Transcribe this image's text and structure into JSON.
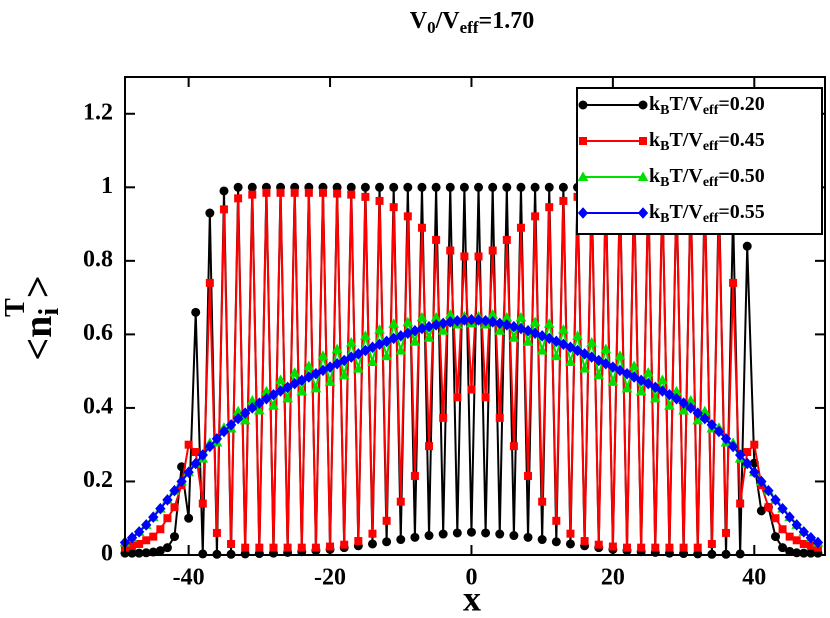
{
  "chart_data": {
    "type": "line",
    "title": [
      "V",
      "0",
      "/V",
      "eff",
      "=1.70"
    ],
    "x_label": "x",
    "y_label": [
      "<n",
      "i",
      "T",
      ">"
    ],
    "xlim": [
      -49,
      50
    ],
    "ylim": [
      0,
      1.3
    ],
    "xticks": [
      -40,
      -20,
      0,
      20,
      40
    ],
    "yticks": [
      0,
      0.2,
      0.4,
      0.6,
      0.8,
      1,
      1.2
    ],
    "legend": "upper right",
    "x": [
      -49,
      -48,
      -47,
      -46,
      -45,
      -44,
      -43,
      -42,
      -41,
      -40,
      -39,
      -38,
      -37,
      -36,
      -35,
      -34,
      -33,
      -32,
      -31,
      -30,
      -29,
      -28,
      -27,
      -26,
      -25,
      -24,
      -23,
      -22,
      -21,
      -20,
      -19,
      -18,
      -17,
      -16,
      -15,
      -14,
      -13,
      -12,
      -11,
      -10,
      -9,
      -8,
      -7,
      -6,
      -5,
      -4,
      -3,
      -2,
      -1,
      0,
      1,
      2,
      3,
      4,
      5,
      6,
      7,
      8,
      9,
      10,
      11,
      12,
      13,
      14,
      15,
      16,
      17,
      18,
      19,
      20,
      21,
      22,
      23,
      24,
      25,
      26,
      27,
      28,
      29,
      30,
      31,
      32,
      33,
      34,
      35,
      36,
      37,
      38,
      39,
      40,
      41,
      42,
      43,
      44,
      45,
      46,
      47,
      48,
      49
    ],
    "series": [
      {
        "name": [
          "k",
          "B",
          "T/V",
          "eff",
          "=0.20"
        ],
        "color": "#000000",
        "marker": "circle",
        "values": [
          0.005,
          0.005,
          0.005,
          0.006,
          0.008,
          0.012,
          0.02,
          0.05,
          0.24,
          0.1,
          0.66,
          0.003,
          0.93,
          0.002,
          0.99,
          0.002,
          1,
          0.003,
          1,
          0.004,
          1,
          0.005,
          1,
          0.007,
          1,
          0.009,
          1,
          0.012,
          1,
          0.015,
          1,
          0.02,
          1,
          0.025,
          1,
          0.03,
          1,
          0.036,
          1,
          0.042,
          1,
          0.048,
          1,
          0.053,
          1,
          0.057,
          1,
          0.06,
          1,
          0.062,
          1,
          0.06,
          1,
          0.057,
          1,
          0.053,
          1,
          0.048,
          1,
          0.042,
          1,
          0.036,
          1,
          0.03,
          1,
          0.025,
          1,
          0.02,
          1,
          0.015,
          1,
          0.012,
          1,
          0.009,
          1,
          0.007,
          1,
          0.005,
          1,
          0.004,
          1,
          0.003,
          1,
          0.002,
          0.99,
          0.002,
          0.93,
          0.003,
          0.84,
          0.25,
          0.12,
          0.13,
          0.05,
          0.02,
          0.01,
          0.006,
          0.005,
          0.005,
          0.005
        ]
      },
      {
        "name": [
          "k",
          "B",
          "T/V",
          "eff",
          "=0.45"
        ],
        "color": "#ff0000",
        "marker": "square",
        "values": [
          0.02,
          0.025,
          0.03,
          0.04,
          0.05,
          0.07,
          0.1,
          0.13,
          0.19,
          0.3,
          0.28,
          0.14,
          0.74,
          0.06,
          0.94,
          0.03,
          0.97,
          0.02,
          0.98,
          0.02,
          0.985,
          0.02,
          0.985,
          0.02,
          0.985,
          0.02,
          0.985,
          0.02,
          0.985,
          0.023,
          0.983,
          0.028,
          0.98,
          0.038,
          0.974,
          0.058,
          0.963,
          0.093,
          0.946,
          0.145,
          0.921,
          0.215,
          0.89,
          0.296,
          0.857,
          0.373,
          0.828,
          0.429,
          0.812,
          0.45,
          0.812,
          0.429,
          0.828,
          0.373,
          0.857,
          0.296,
          0.89,
          0.215,
          0.921,
          0.145,
          0.946,
          0.093,
          0.963,
          0.058,
          0.974,
          0.038,
          0.98,
          0.028,
          0.983,
          0.023,
          0.985,
          0.02,
          0.985,
          0.02,
          0.985,
          0.02,
          0.985,
          0.02,
          0.985,
          0.02,
          0.98,
          0.02,
          0.97,
          0.03,
          0.94,
          0.06,
          0.74,
          0.14,
          0.28,
          0.3,
          0.19,
          0.13,
          0.1,
          0.07,
          0.05,
          0.04,
          0.03,
          0.025,
          0.02
        ]
      },
      {
        "name": [
          "k",
          "B",
          "T/V",
          "eff",
          "=0.50"
        ],
        "color": "#00e000",
        "marker": "triangle",
        "values": [
          0.034,
          0.047,
          0.063,
          0.082,
          0.103,
          0.126,
          0.15,
          0.175,
          0.2,
          0.225,
          0.249,
          0.262,
          0.305,
          0.306,
          0.346,
          0.344,
          0.391,
          0.366,
          0.42,
          0.393,
          0.445,
          0.406,
          0.476,
          0.426,
          0.496,
          0.445,
          0.514,
          0.453,
          0.542,
          0.471,
          0.56,
          0.489,
          0.578,
          0.507,
          0.596,
          0.525,
          0.613,
          0.541,
          0.629,
          0.556,
          0.633,
          0.58,
          0.646,
          0.591,
          0.646,
          0.61,
          0.654,
          0.627,
          0.649,
          0.63,
          0.649,
          0.627,
          0.654,
          0.61,
          0.646,
          0.591,
          0.646,
          0.58,
          0.633,
          0.556,
          0.629,
          0.541,
          0.613,
          0.525,
          0.596,
          0.507,
          0.578,
          0.489,
          0.56,
          0.471,
          0.542,
          0.453,
          0.514,
          0.445,
          0.496,
          0.426,
          0.476,
          0.406,
          0.445,
          0.393,
          0.42,
          0.366,
          0.391,
          0.344,
          0.346,
          0.306,
          0.305,
          0.262,
          0.249,
          0.225,
          0.2,
          0.175,
          0.15,
          0.126,
          0.103,
          0.082,
          0.063,
          0.047,
          0.034
        ]
      },
      {
        "name": [
          "k",
          "B",
          "T/V",
          "eff",
          "=0.55"
        ],
        "color": "#0000ff",
        "marker": "diamond",
        "values": [
          0.034,
          0.047,
          0.063,
          0.082,
          0.103,
          0.126,
          0.15,
          0.175,
          0.2,
          0.225,
          0.249,
          0.272,
          0.295,
          0.316,
          0.336,
          0.354,
          0.371,
          0.386,
          0.4,
          0.413,
          0.425,
          0.436,
          0.446,
          0.456,
          0.466,
          0.475,
          0.484,
          0.493,
          0.502,
          0.511,
          0.52,
          0.529,
          0.538,
          0.547,
          0.556,
          0.565,
          0.573,
          0.581,
          0.589,
          0.596,
          0.603,
          0.61,
          0.616,
          0.621,
          0.626,
          0.63,
          0.634,
          0.637,
          0.639,
          0.64,
          0.639,
          0.637,
          0.634,
          0.63,
          0.626,
          0.621,
          0.616,
          0.61,
          0.603,
          0.596,
          0.589,
          0.581,
          0.573,
          0.565,
          0.556,
          0.547,
          0.538,
          0.529,
          0.52,
          0.511,
          0.502,
          0.493,
          0.484,
          0.475,
          0.466,
          0.456,
          0.446,
          0.436,
          0.425,
          0.413,
          0.4,
          0.386,
          0.371,
          0.354,
          0.336,
          0.316,
          0.295,
          0.272,
          0.249,
          0.225,
          0.2,
          0.175,
          0.15,
          0.126,
          0.103,
          0.082,
          0.063,
          0.047,
          0.034
        ]
      }
    ]
  }
}
